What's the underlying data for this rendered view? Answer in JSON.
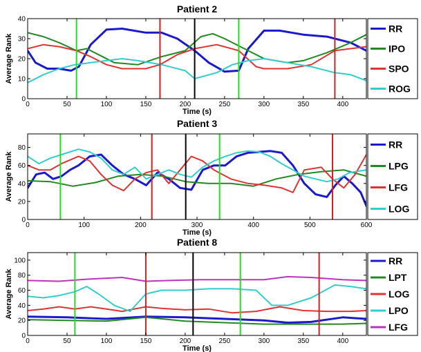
{
  "chart_data": [
    {
      "type": "line",
      "title": "Patient 2",
      "xlabel": "Time (s)",
      "ylabel": "Average Rank",
      "xlim": [
        0,
        430
      ],
      "ylim": [
        0,
        40
      ],
      "xticks": [
        0,
        50,
        100,
        150,
        200,
        250,
        300,
        350,
        400
      ],
      "yticks": [
        0,
        10,
        20,
        30,
        40
      ],
      "vlines": [
        {
          "x": 62,
          "color": "#22dd22"
        },
        {
          "x": 168,
          "color": "#cc2222"
        },
        {
          "x": 212,
          "color": "#000000"
        },
        {
          "x": 268,
          "color": "#22dd22"
        },
        {
          "x": 390,
          "color": "#cc2222"
        }
      ],
      "series": [
        {
          "name": "RR",
          "color": "#1a1acc",
          "width": 3,
          "x": [
            0,
            10,
            25,
            40,
            55,
            65,
            80,
            100,
            120,
            150,
            170,
            190,
            212,
            230,
            250,
            268,
            280,
            300,
            320,
            350,
            380,
            410,
            430
          ],
          "y": [
            24,
            18,
            15,
            15,
            14,
            16,
            27,
            34.5,
            35,
            33,
            33,
            30,
            24,
            18,
            13.5,
            14,
            25,
            34,
            34,
            32,
            31,
            28,
            24
          ]
        },
        {
          "name": "IPO",
          "color": "#228822",
          "width": 2,
          "x": [
            0,
            20,
            40,
            62,
            75,
            90,
            110,
            140,
            170,
            200,
            220,
            235,
            250,
            270,
            300,
            330,
            350,
            380,
            410,
            430
          ],
          "y": [
            33,
            31,
            28,
            24,
            25,
            22,
            18,
            17,
            21,
            24,
            31,
            32.5,
            30,
            26,
            20,
            18,
            19,
            23,
            28,
            32
          ]
        },
        {
          "name": "SPO",
          "color": "#dd3333",
          "width": 2,
          "x": [
            0,
            20,
            40,
            62,
            80,
            100,
            120,
            150,
            168,
            190,
            212,
            240,
            268,
            290,
            300,
            330,
            360,
            390,
            410,
            430
          ],
          "y": [
            25,
            27,
            26,
            24,
            21,
            17,
            15,
            15,
            17,
            22,
            25,
            27,
            24,
            16,
            15,
            15,
            17,
            24,
            25,
            26
          ]
        },
        {
          "name": "ROG",
          "color": "#33cccc",
          "width": 2,
          "x": [
            0,
            20,
            40,
            60,
            80,
            100,
            120,
            140,
            170,
            200,
            212,
            240,
            260,
            280,
            300,
            330,
            360,
            390,
            410,
            430
          ],
          "y": [
            8,
            12,
            15,
            17,
            18,
            19,
            20,
            19,
            17,
            14,
            10,
            13,
            17,
            19,
            20,
            18,
            16,
            13,
            12,
            9
          ]
        }
      ]
    },
    {
      "type": "line",
      "title": "Patient 3",
      "xlabel": "Time (s)",
      "ylabel": "Average Rank",
      "xlim": [
        0,
        600
      ],
      "ylim": [
        0,
        95
      ],
      "xticks": [
        0,
        100,
        200,
        300,
        400,
        500,
        600
      ],
      "yticks": [
        0,
        20,
        40,
        60,
        80
      ],
      "vlines": [
        {
          "x": 58,
          "color": "#22dd22"
        },
        {
          "x": 220,
          "color": "#cc2222"
        },
        {
          "x": 280,
          "color": "#000000"
        },
        {
          "x": 340,
          "color": "#22dd22"
        },
        {
          "x": 540,
          "color": "#cc2222"
        }
      ],
      "series": [
        {
          "name": "RR",
          "color": "#1a1acc",
          "width": 3,
          "x": [
            0,
            15,
            30,
            45,
            60,
            75,
            90,
            110,
            130,
            150,
            170,
            190,
            210,
            230,
            250,
            270,
            290,
            310,
            330,
            350,
            370,
            390,
            410,
            430,
            450,
            470,
            490,
            510,
            530,
            545,
            560,
            575,
            590,
            600
          ],
          "y": [
            35,
            50,
            52,
            45,
            48,
            55,
            60,
            70,
            72,
            60,
            50,
            45,
            38,
            52,
            45,
            35,
            33,
            55,
            60,
            60,
            70,
            74,
            75,
            76,
            74,
            60,
            40,
            28,
            25,
            38,
            48,
            40,
            30,
            15
          ]
        },
        {
          "name": "LPG",
          "color": "#228822",
          "width": 2,
          "x": [
            0,
            40,
            80,
            120,
            160,
            200,
            240,
            280,
            320,
            360,
            400,
            440,
            480,
            520,
            560,
            600
          ],
          "y": [
            43,
            42,
            37,
            41,
            48,
            50,
            48,
            42,
            40,
            40,
            37,
            45,
            50,
            53,
            55,
            48
          ]
        },
        {
          "name": "LFG",
          "color": "#dd3333",
          "width": 2,
          "x": [
            0,
            20,
            40,
            60,
            90,
            110,
            130,
            150,
            170,
            190,
            210,
            230,
            250,
            270,
            290,
            310,
            330,
            360,
            390,
            420,
            450,
            470,
            490,
            520,
            540,
            560,
            580,
            600
          ],
          "y": [
            60,
            55,
            55,
            62,
            70,
            65,
            50,
            38,
            32,
            45,
            52,
            55,
            40,
            55,
            70,
            65,
            55,
            45,
            40,
            38,
            35,
            30,
            55,
            58,
            45,
            35,
            50,
            72
          ]
        },
        {
          "name": "LOG",
          "color": "#33cccc",
          "width": 2,
          "x": [
            0,
            20,
            40,
            60,
            90,
            110,
            130,
            150,
            170,
            190,
            210,
            230,
            250,
            270,
            290,
            310,
            330,
            350,
            370,
            390,
            410,
            430,
            450,
            470,
            490,
            510,
            530,
            550,
            570,
            600
          ],
          "y": [
            70,
            62,
            68,
            72,
            78,
            75,
            68,
            55,
            50,
            58,
            45,
            50,
            55,
            50,
            47,
            58,
            65,
            70,
            74,
            76,
            75,
            70,
            62,
            55,
            48,
            45,
            42,
            45,
            52,
            55
          ]
        }
      ]
    },
    {
      "type": "line",
      "title": "Patient 8",
      "xlabel": "Time (s)",
      "ylabel": "Average Rank",
      "xlim": [
        0,
        430
      ],
      "ylim": [
        0,
        110
      ],
      "xticks": [
        0,
        50,
        100,
        150,
        200,
        250,
        300,
        350,
        400
      ],
      "yticks": [
        0,
        20,
        40,
        60,
        80,
        100
      ],
      "vlines": [
        {
          "x": 60,
          "color": "#22dd22"
        },
        {
          "x": 150,
          "color": "#cc2222"
        },
        {
          "x": 210,
          "color": "#000000"
        },
        {
          "x": 270,
          "color": "#22dd22"
        },
        {
          "x": 370,
          "color": "#cc2222"
        }
      ],
      "series": [
        {
          "name": "RR",
          "color": "#1a1acc",
          "width": 3,
          "x": [
            0,
            50,
            100,
            150,
            200,
            250,
            300,
            330,
            360,
            400,
            430
          ],
          "y": [
            25,
            24,
            22,
            25,
            24,
            22,
            20,
            17,
            18,
            24,
            22
          ]
        },
        {
          "name": "LPT",
          "color": "#228822",
          "width": 2,
          "x": [
            0,
            50,
            100,
            150,
            200,
            250,
            300,
            350,
            400,
            430
          ],
          "y": [
            21,
            20,
            19,
            24,
            19,
            17,
            15,
            15,
            15,
            16
          ]
        },
        {
          "name": "LOG",
          "color": "#dd3333",
          "width": 2,
          "x": [
            0,
            20,
            40,
            60,
            80,
            100,
            120,
            150,
            170,
            200,
            230,
            260,
            290,
            320,
            350,
            380,
            410,
            430
          ],
          "y": [
            33,
            35,
            38,
            35,
            38,
            35,
            32,
            38,
            36,
            34,
            35,
            30,
            32,
            38,
            33,
            32,
            32,
            33
          ]
        },
        {
          "name": "LPO",
          "color": "#33cccc",
          "width": 2,
          "x": [
            0,
            20,
            40,
            60,
            75,
            90,
            110,
            130,
            150,
            170,
            200,
            230,
            260,
            290,
            310,
            330,
            360,
            390,
            410,
            430
          ],
          "y": [
            52,
            50,
            53,
            58,
            65,
            55,
            40,
            32,
            55,
            60,
            60,
            62,
            62,
            60,
            40,
            40,
            50,
            67,
            65,
            62
          ]
        },
        {
          "name": "LFG",
          "color": "#bb33bb",
          "width": 2,
          "x": [
            0,
            40,
            80,
            120,
            150,
            180,
            220,
            260,
            300,
            330,
            360,
            400,
            430
          ],
          "y": [
            73,
            72,
            75,
            77,
            72,
            73,
            74,
            74,
            74,
            78,
            77,
            74,
            73
          ]
        }
      ]
    }
  ]
}
